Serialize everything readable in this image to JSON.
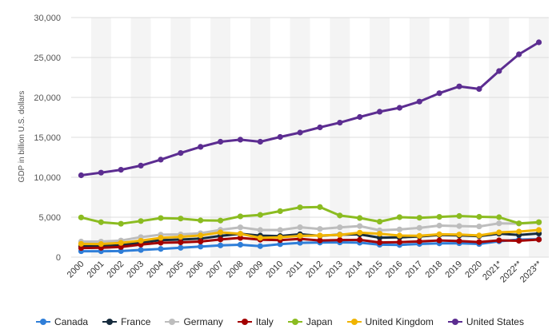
{
  "chart_data": {
    "type": "line",
    "ylabel": "GDP in billion U.S. dollars",
    "ylim": [
      0,
      30000
    ],
    "yticks": [
      "0",
      "5,000",
      "10,000",
      "15,000",
      "20,000",
      "25,000",
      "30,000"
    ],
    "ytick_values": [
      0,
      5000,
      10000,
      15000,
      20000,
      25000,
      30000
    ],
    "categories": [
      "2000",
      "2001",
      "2002",
      "2003",
      "2004",
      "2005",
      "2006",
      "2007",
      "2008",
      "2009",
      "2010",
      "2011",
      "2012",
      "2013",
      "2014",
      "2015",
      "2016",
      "2017",
      "2018",
      "2019",
      "2020",
      "2021*",
      "2022**",
      "2023**"
    ],
    "grid": "horizontal",
    "legend_position": "bottom",
    "series": [
      {
        "name": "Canada",
        "color": "#2f7ed8",
        "values": [
          744,
          738,
          760,
          896,
          1026,
          1173,
          1319,
          1468,
          1552,
          1374,
          1617,
          1793,
          1828,
          1847,
          1805,
          1556,
          1528,
          1649,
          1725,
          1743,
          1647,
          1990,
          2200,
          2240
        ]
      },
      {
        "name": "France",
        "color": "#162b3d",
        "values": [
          1362,
          1376,
          1494,
          1841,
          2116,
          2197,
          2318,
          2657,
          2918,
          2690,
          2643,
          2862,
          2683,
          2811,
          2852,
          2439,
          2466,
          2588,
          2781,
          2716,
          2630,
          2940,
          2780,
          2960
        ]
      },
      {
        "name": "Germany",
        "color": "#bdbdbd",
        "values": [
          1947,
          1945,
          2078,
          2502,
          2809,
          2846,
          2994,
          3425,
          3730,
          3398,
          3397,
          3744,
          3527,
          3733,
          3890,
          3357,
          3467,
          3665,
          3951,
          3888,
          3843,
          4230,
          4200,
          4330
        ]
      },
      {
        "name": "Italy",
        "color": "#a30000",
        "values": [
          1144,
          1167,
          1268,
          1572,
          1800,
          1850,
          1949,
          2213,
          2408,
          2191,
          2134,
          2292,
          2087,
          2141,
          2162,
          1835,
          1876,
          1962,
          2092,
          2010,
          1890,
          2100,
          2050,
          2200
        ]
      },
      {
        "name": "Japan",
        "color": "#8bbc21",
        "values": [
          4968,
          4375,
          4182,
          4519,
          4893,
          4831,
          4601,
          4579,
          5106,
          5289,
          5759,
          6233,
          6272,
          5212,
          4897,
          4444,
          5003,
          4930,
          5040,
          5148,
          5050,
          5000,
          4230,
          4380
        ]
      },
      {
        "name": "United Kingdom",
        "color": "#f0b400",
        "values": [
          1665,
          1640,
          1785,
          2055,
          2422,
          2544,
          2714,
          3101,
          2925,
          2414,
          2486,
          2665,
          2706,
          2786,
          3065,
          2932,
          2697,
          2666,
          2860,
          2830,
          2710,
          3100,
          3200,
          3400
        ]
      },
      {
        "name": "United States",
        "color": "#5c2d91",
        "values": [
          10250,
          10580,
          10940,
          11460,
          12210,
          13040,
          13810,
          14450,
          14710,
          14450,
          15050,
          15600,
          16250,
          16840,
          17550,
          18210,
          18700,
          19480,
          20530,
          21380,
          21060,
          23300,
          25400,
          26900
        ]
      }
    ]
  }
}
